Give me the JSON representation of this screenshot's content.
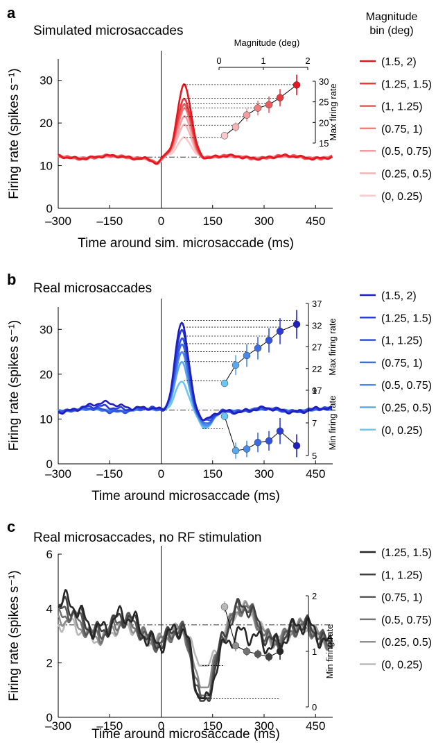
{
  "legend_title": [
    "Magnitude",
    "bin (deg)"
  ],
  "chart_data": [
    {
      "panel": "a",
      "type": "line",
      "title": "Simulated microsaccades",
      "xlabel": "Time around sim. microsaccade (ms)",
      "ylabel": "Firing rate (spikes s⁻¹)",
      "xlim": [
        -300,
        500
      ],
      "ylim": [
        0,
        35
      ],
      "xticks": [
        -300,
        -150,
        0,
        150,
        300,
        450
      ],
      "xtick_labels": [
        "–300",
        "–150",
        "0",
        "150",
        "300",
        "450"
      ],
      "yticks": [
        0,
        10,
        20,
        30
      ],
      "baseline": 12,
      "colors": [
        "#e4161f",
        "#e8393e",
        "#ec5a5d",
        "#f07c7e",
        "#f49c9e",
        "#f7b4b6",
        "#facaca"
      ],
      "series": [
        {
          "name": "(1.5, 2)",
          "peak": 29,
          "trough": 12
        },
        {
          "name": "(1.25, 1.5)",
          "peak": 25.8,
          "trough": 12
        },
        {
          "name": "(1, 1.25)",
          "peak": 24.5,
          "trough": 12
        },
        {
          "name": "(0.75, 1)",
          "peak": 23.5,
          "trough": 12
        },
        {
          "name": "(0.5, 0.75)",
          "peak": 21.5,
          "trough": 12
        },
        {
          "name": "(0.25, 0.5)",
          "peak": 19.5,
          "trough": 12
        },
        {
          "name": "(0, 0.25)",
          "peak": 16.5,
          "trough": 12
        }
      ],
      "inset_max": {
        "xlabel": "Magnitude (deg)",
        "ylabel": "Max firing rate",
        "xlim": [
          0,
          2
        ],
        "xticks": [
          0,
          1,
          2
        ],
        "ylim": [
          15,
          30
        ],
        "yticks": [
          15,
          20,
          25,
          30
        ],
        "x": [
          0.125,
          0.375,
          0.625,
          0.875,
          1.125,
          1.375,
          1.75
        ],
        "y": [
          16.8,
          18.9,
          21.8,
          23.5,
          24.3,
          26.0,
          29.1
        ],
        "err": [
          0.6,
          1.2,
          1.6,
          1.8,
          2.0,
          2.1,
          2.5
        ]
      }
    },
    {
      "panel": "b",
      "type": "line",
      "title": "Real microsaccades",
      "xlabel": "Time around microsaccade (ms)",
      "ylabel": "Firing rate (spikes s⁻¹)",
      "xlim": [
        -300,
        500
      ],
      "ylim": [
        0,
        35
      ],
      "xticks": [
        -300,
        -150,
        0,
        150,
        300,
        450
      ],
      "xtick_labels": [
        "–300",
        "–150",
        "0",
        "150",
        "300",
        "450"
      ],
      "yticks": [
        0,
        10,
        20,
        30
      ],
      "baseline": 12,
      "colors": [
        "#1f1fbf",
        "#2a3cd4",
        "#3254dd",
        "#3b6de2",
        "#4a8ae8",
        "#5aa8ee",
        "#6cc6f4"
      ],
      "series": [
        {
          "name": "(1.5, 2)",
          "peak": 32,
          "trough": 9.5
        },
        {
          "name": "(1.25, 1.5)",
          "peak": 30.5,
          "trough": 9.3
        },
        {
          "name": "(1, 1.25)",
          "peak": 28.5,
          "trough": 9.0
        },
        {
          "name": "(0.75, 1)",
          "peak": 26.8,
          "trough": 8.7
        },
        {
          "name": "(0.5, 0.75)",
          "peak": 25.0,
          "trough": 8.4
        },
        {
          "name": "(0.25, 0.5)",
          "peak": 22.8,
          "trough": 8.1
        },
        {
          "name": "(0, 0.25)",
          "peak": 18.5,
          "trough": 7.8
        }
      ],
      "inset_max": {
        "ylabel": "Max firing rate",
        "ylim": [
          17,
          37
        ],
        "yticks": [
          17,
          22,
          27,
          32,
          37
        ],
        "x": [
          0.125,
          0.375,
          0.625,
          0.875,
          1.125,
          1.375,
          1.75
        ],
        "y": [
          18.6,
          22.8,
          25.0,
          26.7,
          28.5,
          30.6,
          32.2
        ],
        "err": [
          0.8,
          2.3,
          2.6,
          2.6,
          2.8,
          3.0,
          3.3
        ]
      },
      "inset_min": {
        "ylabel": "Min firing rate",
        "ylim": [
          5,
          9
        ],
        "yticks": [
          5,
          7,
          9
        ],
        "x": [
          0.125,
          0.375,
          0.625,
          0.875,
          1.125,
          1.375,
          1.75
        ],
        "y": [
          7.4,
          5.3,
          5.4,
          5.8,
          5.9,
          6.5,
          5.6
        ],
        "err": [
          0.2,
          0.5,
          0.5,
          0.6,
          0.6,
          0.8,
          0.7
        ]
      }
    },
    {
      "panel": "c",
      "type": "line",
      "title": "Real microsaccades, no RF stimulation",
      "xlabel": "Time around microsaccade (ms)",
      "ylabel": "Firing rate (spikes s⁻¹)",
      "xlim": [
        -300,
        500
      ],
      "ylim": [
        0,
        6
      ],
      "xticks": [
        -300,
        -150,
        0,
        150,
        300,
        450
      ],
      "xtick_labels": [
        "–300",
        "–150",
        "0",
        "150",
        "300",
        "450"
      ],
      "yticks": [
        0,
        2,
        4,
        6
      ],
      "baseline": 3.4,
      "colors": [
        "#262626",
        "#404040",
        "#595959",
        "#737373",
        "#8f8f8f",
        "#b8b8b8"
      ],
      "series": [
        {
          "name": "(1.25, 1.5)",
          "trough": 0.7
        },
        {
          "name": "(1, 1.25)",
          "trough": 0.6
        },
        {
          "name": "(0.75, 1)",
          "trough": 0.7
        },
        {
          "name": "(0.5, 0.75)",
          "trough": 0.8
        },
        {
          "name": "(0.25, 0.5)",
          "trough": 1.1
        },
        {
          "name": "(0, 0.25)",
          "trough": 1.9
        }
      ],
      "inset_min": {
        "ylabel": "Min firing rate",
        "ylim": [
          0,
          2
        ],
        "yticks": [
          0,
          1,
          2
        ],
        "x": [
          0.125,
          0.375,
          0.625,
          0.875,
          1.125,
          1.375
        ],
        "y": [
          1.8,
          1.1,
          1.0,
          0.95,
          0.9,
          1.0
        ],
        "err": [
          0.1,
          0.1,
          0.08,
          0.08,
          0.08,
          0.15
        ]
      }
    }
  ]
}
